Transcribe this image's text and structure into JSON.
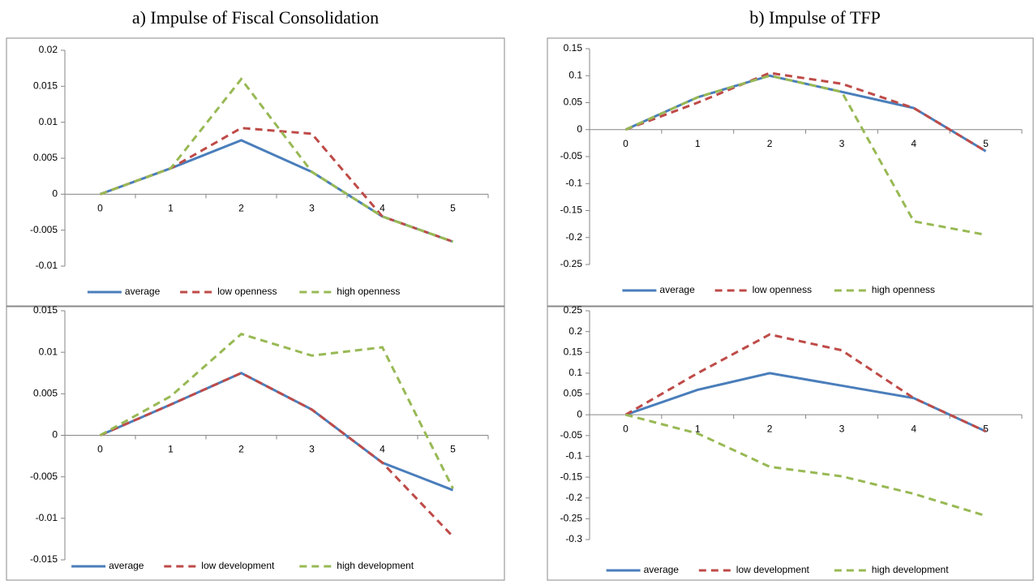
{
  "panel_titles": [
    "a)   Impulse of Fiscal Consolidation",
    "b)   Impulse of TFP"
  ],
  "chart_data": [
    {
      "type": "line",
      "categories": [
        "0",
        "1",
        "2",
        "3",
        "4",
        "5"
      ],
      "ylim": [
        -0.01,
        0.02
      ],
      "yticks": [
        -0.01,
        -0.005,
        0,
        0.005,
        0.01,
        0.015,
        0.02
      ],
      "series": [
        {
          "name": "average",
          "color": "#4a7ebb",
          "dash": false,
          "values": [
            0,
            0.0036,
            0.0075,
            0.0031,
            -0.0031,
            -0.0066
          ]
        },
        {
          "name": "low openness",
          "color": "#be4b48",
          "dash": true,
          "values": [
            0,
            0.0036,
            0.0092,
            0.0084,
            -0.0031,
            -0.0066
          ]
        },
        {
          "name": "high openness",
          "color": "#98b954",
          "dash": true,
          "values": [
            0,
            0.0036,
            0.016,
            0.0031,
            -0.0031,
            -0.0066
          ]
        }
      ]
    },
    {
      "type": "line",
      "categories": [
        "0",
        "1",
        "2",
        "3",
        "4",
        "5"
      ],
      "ylim": [
        -0.015,
        0.015
      ],
      "yticks": [
        -0.015,
        -0.01,
        -0.005,
        0,
        0.005,
        0.01,
        0.015
      ],
      "series": [
        {
          "name": "average",
          "color": "#4a7ebb",
          "dash": false,
          "values": [
            0,
            0.0037,
            0.0075,
            0.0031,
            -0.0033,
            -0.0066
          ]
        },
        {
          "name": "low development",
          "color": "#be4b48",
          "dash": true,
          "values": [
            0,
            0.0037,
            0.0075,
            0.0031,
            -0.0033,
            -0.0122
          ]
        },
        {
          "name": "high development",
          "color": "#98b954",
          "dash": true,
          "values": [
            0,
            0.0047,
            0.0122,
            0.0096,
            0.0106,
            -0.0064
          ]
        }
      ]
    },
    {
      "type": "line",
      "categories": [
        "0",
        "1",
        "2",
        "3",
        "4",
        "5"
      ],
      "ylim": [
        -0.25,
        0.15
      ],
      "yticks": [
        -0.25,
        -0.2,
        -0.15,
        -0.1,
        -0.05,
        0,
        0.05,
        0.1,
        0.15
      ],
      "series": [
        {
          "name": "average",
          "color": "#4a7ebb",
          "dash": false,
          "values": [
            0,
            0.06,
            0.1,
            0.07,
            0.04,
            -0.04
          ]
        },
        {
          "name": "low openness",
          "color": "#be4b48",
          "dash": true,
          "values": [
            0,
            0.05,
            0.105,
            0.085,
            0.04,
            -0.04
          ]
        },
        {
          "name": "high openness",
          "color": "#98b954",
          "dash": true,
          "values": [
            0,
            0.06,
            0.1,
            0.07,
            -0.17,
            -0.195
          ]
        }
      ]
    },
    {
      "type": "line",
      "categories": [
        "0",
        "1",
        "2",
        "3",
        "4",
        "5"
      ],
      "ylim": [
        -0.3,
        0.25
      ],
      "yticks": [
        -0.3,
        -0.25,
        -0.2,
        -0.15,
        -0.1,
        -0.05,
        0,
        0.05,
        0.1,
        0.15,
        0.2,
        0.25
      ],
      "series": [
        {
          "name": "average",
          "color": "#4a7ebb",
          "dash": false,
          "values": [
            0,
            0.06,
            0.1,
            0.07,
            0.04,
            -0.04
          ]
        },
        {
          "name": "low development",
          "color": "#be4b48",
          "dash": true,
          "values": [
            0,
            0.1,
            0.193,
            0.155,
            0.04,
            -0.04
          ]
        },
        {
          "name": "high development",
          "color": "#98b954",
          "dash": true,
          "values": [
            0,
            -0.045,
            -0.125,
            -0.148,
            -0.19,
            -0.243
          ]
        }
      ]
    }
  ]
}
